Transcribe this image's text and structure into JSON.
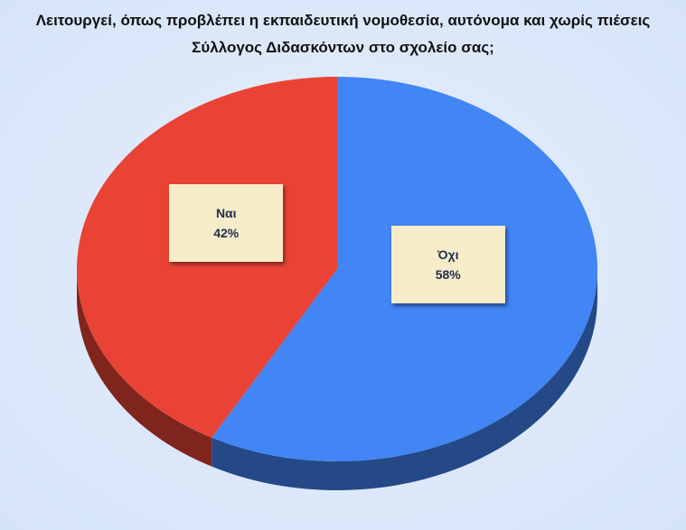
{
  "chart_data": {
    "type": "pie",
    "title": "Λειτουργεί, όπως προβλέπει η εκπαιδευτική νομοθεσία, αυτόνομα και χωρίς πιέσεις Σύλλογος Διδασκόντων στο σχολείο σας;",
    "categories": [
      "Ναι",
      "Όχι"
    ],
    "values": [
      42,
      58
    ],
    "value_labels": [
      "42%",
      "58%"
    ],
    "colors": [
      "#e94335",
      "#4285f4"
    ]
  }
}
